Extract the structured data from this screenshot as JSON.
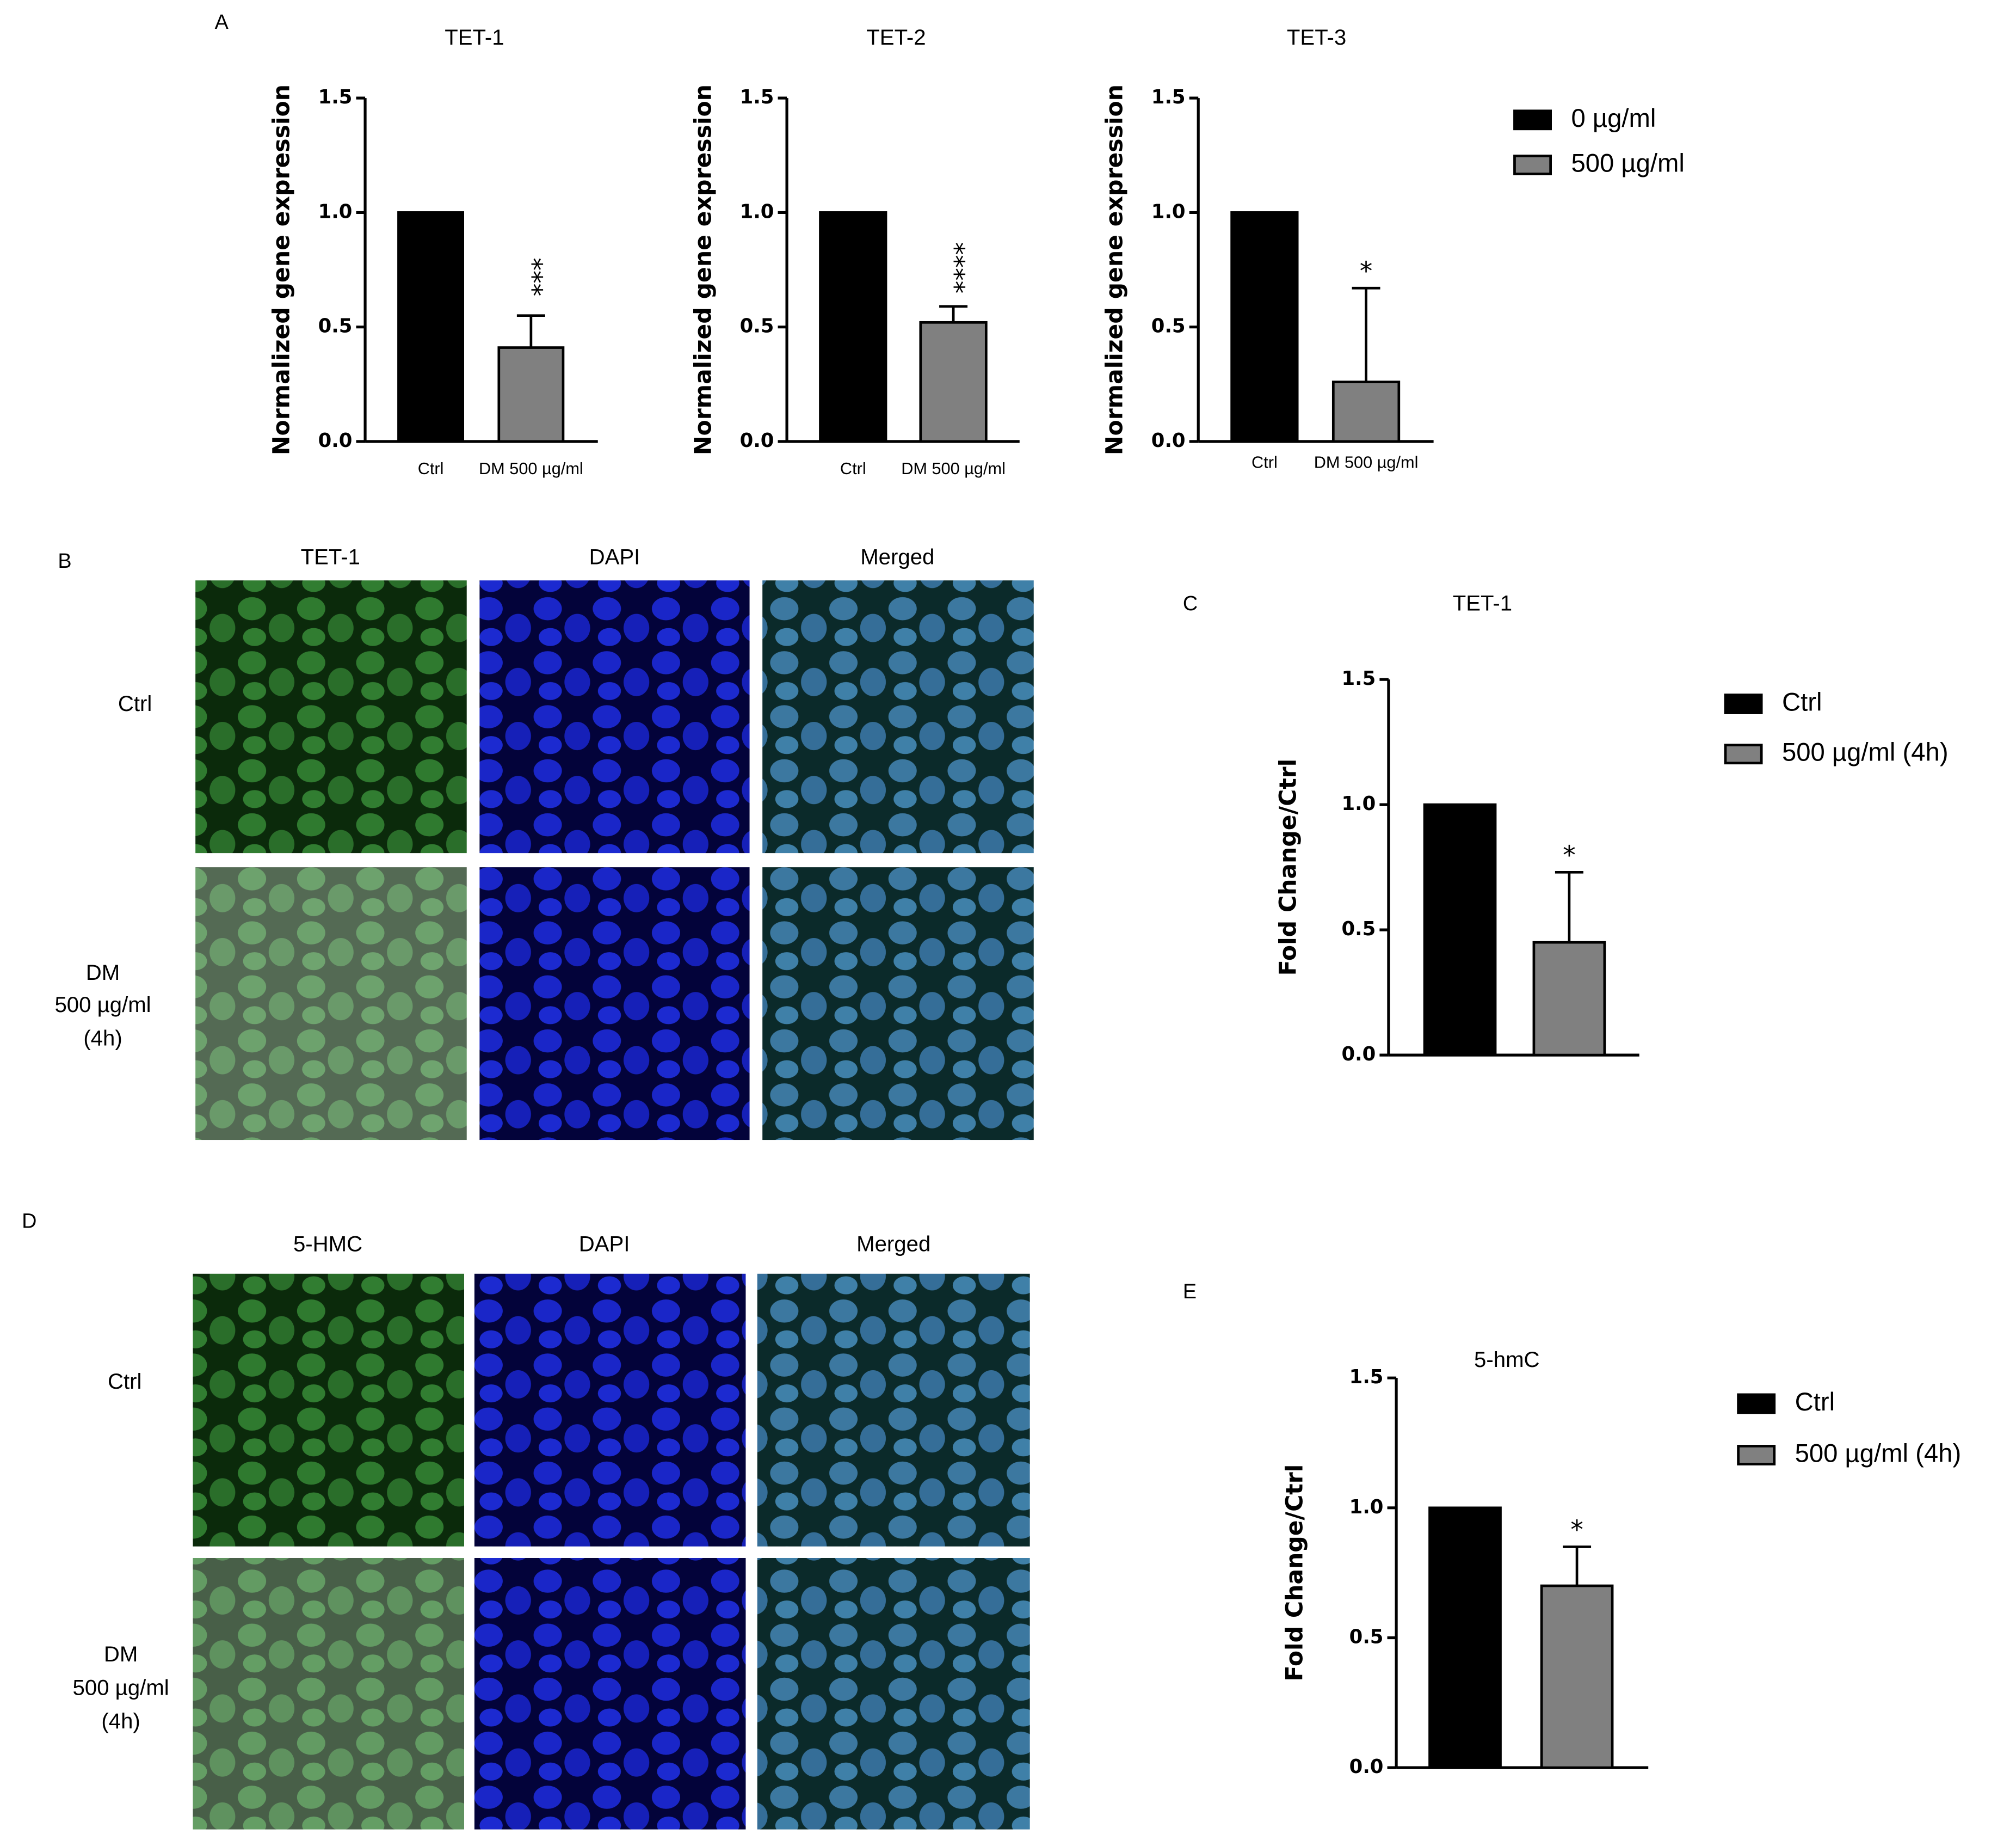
{
  "figure": {
    "panels": [
      "A",
      "B",
      "C",
      "D",
      "E"
    ]
  },
  "microscopy": [
    {
      "columns": [
        "TET-1",
        "DAPI",
        "Merged"
      ],
      "rows": [
        [
          "Ctrl"
        ],
        [
          "DM",
          "500 µg/ml",
          "(4h)"
        ]
      ]
    },
    {
      "columns": [
        "5-HMC",
        "DAPI",
        "Merged"
      ],
      "rows": [
        [
          "Ctrl"
        ],
        [
          "DM",
          "500 µg/ml",
          "(4h)"
        ]
      ]
    }
  ],
  "chart_data": [
    {
      "type": "bar",
      "title": "TET-1",
      "ylabel": "Normalized gene expression",
      "categories": [
        "Ctrl",
        "DM 500 µg/ml"
      ],
      "values": [
        1,
        0.41
      ],
      "errors": [
        null,
        0.14
      ],
      "colors": [
        "#000000",
        "#808080"
      ],
      "annotations": [
        null,
        "***"
      ],
      "annotation_vertical": true,
      "ylim": [
        0,
        1.5
      ],
      "yticks": [
        {
          "value": 0,
          "label": "0.0"
        },
        0.5,
        {
          "value": 1,
          "label": "1.0"
        },
        1.5
      ]
    },
    {
      "type": "bar",
      "title": "TET-2",
      "ylabel": "Normalized gene expression",
      "categories": [
        "Ctrl",
        "DM 500 µg/ml"
      ],
      "values": [
        1,
        0.52
      ],
      "errors": [
        null,
        0.07
      ],
      "colors": [
        "#000000",
        "#808080"
      ],
      "annotations": [
        null,
        "****"
      ],
      "annotation_vertical": true,
      "ylim": [
        0,
        1.5
      ],
      "yticks": [
        {
          "value": 0,
          "label": "0.0"
        },
        0.5,
        {
          "value": 1,
          "label": "1.0"
        },
        1.5
      ]
    },
    {
      "type": "bar",
      "title": "TET-3",
      "ylabel": "Normalized gene expression",
      "categories": [
        "Ctrl",
        "DM 500 µg/ml"
      ],
      "values": [
        1,
        0.26
      ],
      "errors": [
        null,
        0.41
      ],
      "colors": [
        "#000000",
        "#808080"
      ],
      "annotations": [
        null,
        "*"
      ],
      "annotation_vertical": false,
      "ylim": [
        0,
        1.5
      ],
      "yticks": [
        {
          "value": 0,
          "label": "0.0"
        },
        0.5,
        {
          "value": 1,
          "label": "1.0"
        },
        1.5
      ],
      "legend": [
        "0 µg/ml",
        "500 µg/ml"
      ]
    },
    {
      "type": "bar",
      "title": "TET-1",
      "ylabel": "Fold Change/Ctrl",
      "values": [
        1,
        0.45
      ],
      "errors": [
        null,
        0.28
      ],
      "colors": [
        "#000000",
        "#808080"
      ],
      "annotations": [
        null,
        "*"
      ],
      "annotation_vertical": false,
      "ylim": [
        0,
        1.5
      ],
      "yticks": [
        {
          "value": 0,
          "label": "0.0"
        },
        0.5,
        {
          "value": 1,
          "label": "1.0"
        },
        1.5
      ],
      "legend": [
        "Ctrl",
        "500 µg/ml (4h)"
      ]
    },
    {
      "type": "bar",
      "title": "5-hmC",
      "ylabel": "Fold Change/Ctrl",
      "values": [
        1,
        0.7
      ],
      "errors": [
        null,
        0.15
      ],
      "colors": [
        "#000000",
        "#808080"
      ],
      "annotations": [
        null,
        "*"
      ],
      "annotation_vertical": false,
      "ylim": [
        0,
        1.5
      ],
      "yticks": [
        {
          "value": 0,
          "label": "0.0"
        },
        0.5,
        {
          "value": 1,
          "label": "1.0"
        },
        1.5
      ],
      "legend": [
        "Ctrl",
        "500 µg/ml (4h)"
      ]
    }
  ]
}
